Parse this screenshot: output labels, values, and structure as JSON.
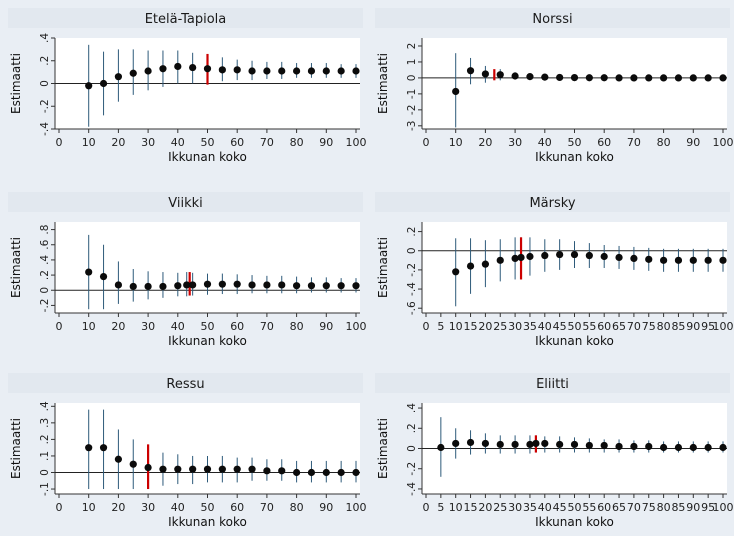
{
  "chart_data": [
    {
      "type": "scatter",
      "title": "Etelä-Tapiola",
      "xlabel": "Ikkunan koko",
      "ylabel": "Estimaatti",
      "xlim": [
        0,
        100
      ],
      "ylim": [
        -0.4,
        0.4
      ],
      "xticks": [
        "0",
        "10",
        "20",
        "30",
        "40",
        "50",
        "60",
        "70",
        "80",
        "90",
        "100"
      ],
      "yticks": [
        "-.4",
        "-.2",
        "0",
        ".2",
        ".4"
      ],
      "x": [
        10,
        15,
        20,
        25,
        30,
        35,
        40,
        45,
        50,
        55,
        60,
        65,
        70,
        75,
        80,
        85,
        90,
        95,
        100
      ],
      "y": [
        -0.02,
        0.0,
        0.06,
        0.09,
        0.11,
        0.13,
        0.15,
        0.14,
        0.13,
        0.12,
        0.12,
        0.11,
        0.11,
        0.11,
        0.11,
        0.11,
        0.11,
        0.11,
        0.11
      ],
      "lower": [
        -0.38,
        -0.28,
        -0.16,
        -0.1,
        -0.06,
        -0.03,
        0.0,
        0.0,
        0.01,
        0.02,
        0.03,
        0.03,
        0.04,
        0.04,
        0.05,
        0.05,
        0.05,
        0.05,
        0.05
      ],
      "upper": [
        0.34,
        0.28,
        0.3,
        0.3,
        0.29,
        0.29,
        0.29,
        0.27,
        0.25,
        0.23,
        0.21,
        0.2,
        0.19,
        0.19,
        0.18,
        0.18,
        0.18,
        0.17,
        0.17
      ],
      "marker": {
        "x": 50,
        "y0": -0.01,
        "y1": 0.26,
        "color": "#cc0000"
      },
      "colors": {
        "point": "#0b0b0b",
        "ci": "#2d5a7a",
        "marker": "#cc0000"
      }
    },
    {
      "type": "scatter",
      "title": "Norssi",
      "xlabel": "Ikkunan koko",
      "ylabel": "Estimaatti",
      "xlim": [
        0,
        100
      ],
      "ylim": [
        -3.2,
        2.5
      ],
      "xticks": [
        "0",
        "10",
        "20",
        "30",
        "40",
        "50",
        "60",
        "70",
        "80",
        "90",
        "100"
      ],
      "yticks": [
        "-3",
        "-2",
        "-1",
        "0",
        "1",
        "2"
      ],
      "x": [
        10,
        15,
        20,
        25,
        30,
        35,
        40,
        45,
        50,
        55,
        60,
        65,
        70,
        75,
        80,
        85,
        90,
        95,
        100
      ],
      "y": [
        -0.85,
        0.45,
        0.25,
        0.2,
        0.12,
        0.08,
        0.05,
        0.03,
        0.02,
        0.01,
        0.01,
        0.0,
        0.0,
        0.0,
        0.0,
        0.0,
        0.0,
        0.0,
        0.0
      ],
      "lower": [
        -3.1,
        -0.4,
        -0.3,
        -0.15,
        -0.1,
        -0.08,
        -0.07,
        -0.06,
        -0.05,
        -0.05,
        -0.05,
        -0.05,
        -0.05,
        -0.05,
        -0.05,
        -0.05,
        -0.05,
        -0.05,
        -0.05
      ],
      "upper": [
        1.55,
        1.25,
        0.75,
        0.55,
        0.35,
        0.25,
        0.18,
        0.12,
        0.1,
        0.08,
        0.07,
        0.06,
        0.05,
        0.05,
        0.05,
        0.05,
        0.05,
        0.05,
        0.05
      ],
      "marker": {
        "x": 23,
        "y0": -0.15,
        "y1": 0.55,
        "color": "#cc0000"
      },
      "colors": {
        "point": "#0b0b0b",
        "ci": "#2d5a7a",
        "marker": "#cc0000"
      }
    },
    {
      "type": "scatter",
      "title": "Viikki",
      "xlabel": "Ikkunan koko",
      "ylabel": "Estimaatti",
      "xlim": [
        0,
        100
      ],
      "ylim": [
        -0.3,
        0.9
      ],
      "xticks": [
        "0",
        "10",
        "20",
        "30",
        "40",
        "50",
        "60",
        "70",
        "80",
        "90",
        "100"
      ],
      "yticks": [
        "-.2",
        "0",
        ".2",
        ".4",
        ".6",
        ".8"
      ],
      "x": [
        10,
        15,
        20,
        25,
        30,
        35,
        40,
        43,
        45,
        50,
        55,
        60,
        65,
        70,
        75,
        80,
        85,
        90,
        95,
        100
      ],
      "y": [
        0.24,
        0.18,
        0.07,
        0.05,
        0.05,
        0.05,
        0.06,
        0.07,
        0.07,
        0.08,
        0.08,
        0.08,
        0.07,
        0.07,
        0.07,
        0.06,
        0.06,
        0.06,
        0.06,
        0.06
      ],
      "lower": [
        -0.25,
        -0.25,
        -0.18,
        -0.15,
        -0.12,
        -0.1,
        -0.08,
        -0.08,
        -0.07,
        -0.06,
        -0.05,
        -0.05,
        -0.04,
        -0.04,
        -0.04,
        -0.04,
        -0.03,
        -0.03,
        -0.03,
        -0.03
      ],
      "upper": [
        0.73,
        0.6,
        0.38,
        0.28,
        0.25,
        0.24,
        0.23,
        0.24,
        0.23,
        0.22,
        0.22,
        0.21,
        0.2,
        0.19,
        0.19,
        0.18,
        0.17,
        0.17,
        0.16,
        0.16
      ],
      "marker": {
        "x": 44,
        "y0": -0.07,
        "y1": 0.24,
        "color": "#cc0000"
      },
      "colors": {
        "point": "#0b0b0b",
        "ci": "#2d5a7a",
        "marker": "#cc0000"
      }
    },
    {
      "type": "scatter",
      "title": "Märsky",
      "xlabel": "Ikkunan koko",
      "ylabel": "Estimaatti",
      "xlim": [
        0,
        100
      ],
      "ylim": [
        -0.65,
        0.3
      ],
      "xticks": [
        "0",
        "5",
        "10",
        "15",
        "20",
        "25",
        "30",
        "35",
        "40",
        "45",
        "50",
        "55",
        "60",
        "65",
        "70",
        "75",
        "80",
        "85",
        "90",
        "95",
        "100"
      ],
      "yticks": [
        "-.6",
        "-.4",
        "-.2",
        "0",
        ".2"
      ],
      "x": [
        10,
        15,
        20,
        25,
        30,
        32,
        35,
        40,
        45,
        50,
        55,
        60,
        65,
        70,
        75,
        80,
        85,
        90,
        95,
        100
      ],
      "y": [
        -0.22,
        -0.16,
        -0.14,
        -0.1,
        -0.08,
        -0.07,
        -0.06,
        -0.05,
        -0.04,
        -0.04,
        -0.05,
        -0.06,
        -0.07,
        -0.08,
        -0.09,
        -0.1,
        -0.1,
        -0.1,
        -0.1,
        -0.1
      ],
      "lower": [
        -0.58,
        -0.45,
        -0.38,
        -0.32,
        -0.3,
        -0.28,
        -0.26,
        -0.22,
        -0.2,
        -0.18,
        -0.18,
        -0.18,
        -0.19,
        -0.2,
        -0.21,
        -0.22,
        -0.22,
        -0.22,
        -0.22,
        -0.22
      ],
      "upper": [
        0.13,
        0.13,
        0.11,
        0.12,
        0.14,
        0.14,
        0.14,
        0.12,
        0.12,
        0.1,
        0.08,
        0.06,
        0.05,
        0.04,
        0.03,
        0.02,
        0.02,
        0.02,
        0.02,
        0.02
      ],
      "marker": {
        "x": 32,
        "y0": -0.3,
        "y1": 0.14,
        "color": "#cc0000"
      },
      "colors": {
        "point": "#0b0b0b",
        "ci": "#2d5a7a",
        "marker": "#cc0000"
      }
    },
    {
      "type": "scatter",
      "title": "Ressu",
      "xlabel": "Ikkunan koko",
      "ylabel": "Estimaatti",
      "xlim": [
        0,
        100
      ],
      "ylim": [
        -0.13,
        0.42
      ],
      "xticks": [
        "0",
        "10",
        "20",
        "30",
        "40",
        "50",
        "60",
        "70",
        "80",
        "90",
        "100"
      ],
      "yticks": [
        "-.1",
        "0",
        ".1",
        ".2",
        ".3",
        ".4"
      ],
      "x": [
        10,
        15,
        20,
        25,
        30,
        35,
        40,
        45,
        50,
        55,
        60,
        65,
        70,
        75,
        80,
        85,
        90,
        95,
        100
      ],
      "y": [
        0.15,
        0.15,
        0.08,
        0.05,
        0.03,
        0.02,
        0.02,
        0.02,
        0.02,
        0.02,
        0.02,
        0.02,
        0.01,
        0.01,
        0.0,
        0.0,
        0.0,
        0.0,
        0.0
      ],
      "lower": [
        -0.1,
        -0.1,
        -0.1,
        -0.1,
        -0.09,
        -0.08,
        -0.07,
        -0.07,
        -0.06,
        -0.06,
        -0.06,
        -0.05,
        -0.05,
        -0.05,
        -0.06,
        -0.06,
        -0.06,
        -0.06,
        -0.06
      ],
      "upper": [
        0.38,
        0.38,
        0.26,
        0.2,
        0.15,
        0.12,
        0.11,
        0.1,
        0.1,
        0.1,
        0.09,
        0.09,
        0.08,
        0.08,
        0.07,
        0.07,
        0.07,
        0.07,
        0.07
      ],
      "marker": {
        "x": 30,
        "y0": -0.1,
        "y1": 0.17,
        "color": "#cc0000"
      },
      "colors": {
        "point": "#0b0b0b",
        "ci": "#2d5a7a",
        "marker": "#cc0000"
      }
    },
    {
      "type": "scatter",
      "title": "Eliitti",
      "xlabel": "Ikkunan koko",
      "ylabel": "Estimaatti",
      "xlim": [
        0,
        100
      ],
      "ylim": [
        -0.45,
        0.45
      ],
      "xticks": [
        "0",
        "5",
        "10",
        "15",
        "20",
        "25",
        "30",
        "35",
        "40",
        "45",
        "50",
        "55",
        "60",
        "65",
        "70",
        "75",
        "80",
        "85",
        "90",
        "95",
        "100"
      ],
      "yticks": [
        "-.4",
        "-.2",
        "0",
        ".2",
        ".4"
      ],
      "x": [
        5,
        10,
        15,
        20,
        25,
        30,
        35,
        37,
        40,
        45,
        50,
        55,
        60,
        65,
        70,
        75,
        80,
        85,
        90,
        95,
        100
      ],
      "y": [
        0.01,
        0.05,
        0.06,
        0.05,
        0.04,
        0.04,
        0.04,
        0.05,
        0.05,
        0.04,
        0.04,
        0.03,
        0.03,
        0.02,
        0.02,
        0.02,
        0.01,
        0.01,
        0.01,
        0.01,
        0.01
      ],
      "lower": [
        -0.28,
        -0.1,
        -0.06,
        -0.05,
        -0.05,
        -0.05,
        -0.05,
        -0.04,
        -0.04,
        -0.04,
        -0.04,
        -0.04,
        -0.04,
        -0.04,
        -0.04,
        -0.04,
        -0.04,
        -0.04,
        -0.04,
        -0.04,
        -0.04
      ],
      "upper": [
        0.31,
        0.2,
        0.18,
        0.15,
        0.13,
        0.13,
        0.13,
        0.13,
        0.12,
        0.12,
        0.11,
        0.1,
        0.09,
        0.09,
        0.08,
        0.08,
        0.07,
        0.07,
        0.07,
        0.07,
        0.07
      ],
      "marker": {
        "x": 37,
        "y0": -0.04,
        "y1": 0.13,
        "color": "#cc0000"
      },
      "colors": {
        "point": "#0b0b0b",
        "ci": "#2d5a7a",
        "marker": "#cc0000"
      }
    }
  ]
}
